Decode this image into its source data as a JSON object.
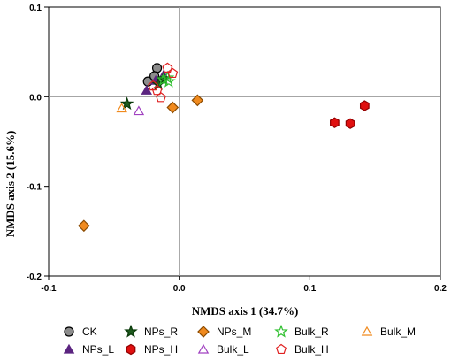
{
  "chart_data": {
    "type": "scatter",
    "xlabel": "NMDS axis 1 (34.7%)",
    "ylabel": "NMDS axis 2 (15.6%)",
    "xlim": [
      -0.1,
      0.2
    ],
    "ylim": [
      -0.2,
      0.1
    ],
    "x_ticks": [
      -0.1,
      0.0,
      0.1,
      0.2
    ],
    "x_tick_labels": [
      "-0.1",
      "0.0",
      "0.1",
      "0.2"
    ],
    "y_ticks": [
      -0.2,
      -0.1,
      0.0,
      0.1
    ],
    "y_tick_labels": [
      "-0.2",
      "-0.1",
      "0.0",
      "0.1"
    ],
    "reference_lines": {
      "x": 0,
      "y": 0
    },
    "legend_position": "bottom",
    "series": [
      {
        "name": "CK",
        "marker": "circle",
        "fill": "#8c8c8c",
        "stroke": "#000000",
        "points": [
          [
            -0.024,
            0.017
          ],
          [
            -0.017,
            0.032
          ],
          [
            -0.019,
            0.023
          ]
        ]
      },
      {
        "name": "NPs_L",
        "marker": "triangle",
        "fill": "#5b2480",
        "stroke": "#5b2480",
        "points": [
          [
            -0.025,
            0.007
          ],
          [
            -0.018,
            0.018
          ],
          [
            -0.012,
            0.024
          ]
        ]
      },
      {
        "name": "NPs_R",
        "marker": "star",
        "fill": "#1e5a1e",
        "stroke": "#0a3a0a",
        "points": [
          [
            -0.04,
            -0.008
          ],
          [
            -0.016,
            0.014
          ],
          [
            -0.012,
            0.02
          ]
        ]
      },
      {
        "name": "NPs_H",
        "marker": "hexagon",
        "fill": "#e01010",
        "stroke": "#900000",
        "points": [
          [
            0.119,
            -0.029
          ],
          [
            0.131,
            -0.03
          ],
          [
            0.142,
            -0.01
          ]
        ]
      },
      {
        "name": "NPs_M",
        "marker": "diamond",
        "fill": "#f08a1e",
        "stroke": "#8a4a00",
        "points": [
          [
            -0.073,
            -0.144
          ],
          [
            -0.005,
            -0.012
          ],
          [
            0.014,
            -0.004
          ]
        ]
      },
      {
        "name": "Bulk_L",
        "marker": "triangle-open",
        "fill": "none",
        "stroke": "#a040c0",
        "points": [
          [
            -0.031,
            -0.016
          ]
        ]
      },
      {
        "name": "Bulk_R",
        "marker": "star-open",
        "fill": "none",
        "stroke": "#30c030",
        "points": [
          [
            -0.012,
            0.019
          ],
          [
            -0.008,
            0.017
          ],
          [
            -0.009,
            0.021
          ]
        ]
      },
      {
        "name": "Bulk_H",
        "marker": "pentagon-open",
        "fill": "none",
        "stroke": "#e02020",
        "points": [
          [
            -0.009,
            0.032
          ],
          [
            -0.005,
            0.026
          ],
          [
            -0.017,
            0.007
          ],
          [
            -0.014,
            -0.001
          ],
          [
            -0.02,
            0.012
          ]
        ]
      },
      {
        "name": "Bulk_M",
        "marker": "triangle-open",
        "fill": "none",
        "stroke": "#f08a1e",
        "points": [
          [
            -0.044,
            -0.013
          ]
        ]
      }
    ],
    "legend": [
      [
        "CK",
        "NPs_R",
        "NPs_M",
        "Bulk_R",
        "Bulk_M"
      ],
      [
        "NPs_L",
        "NPs_H",
        "Bulk_L",
        "Bulk_H"
      ]
    ]
  }
}
